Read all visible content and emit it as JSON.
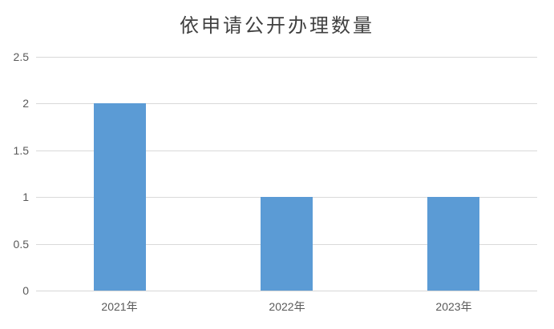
{
  "chart_data": {
    "type": "bar",
    "title": "依申请公开办理数量",
    "categories": [
      "2021年",
      "2022年",
      "2023年"
    ],
    "values": [
      2,
      1,
      1
    ],
    "xlabel": "",
    "ylabel": "",
    "ylim": [
      0,
      2.5
    ],
    "yticks": [
      0,
      0.5,
      1,
      1.5,
      2,
      2.5
    ],
    "ytick_labels": [
      "0",
      "0.5",
      "1",
      "1.5",
      "2",
      "2.5"
    ],
    "grid": true,
    "legend": false,
    "colors": {
      "bar": "#5b9bd5",
      "gridline": "#d9d9d9",
      "axis_labels": "#595959",
      "title": "#404040",
      "background": "#ffffff"
    }
  }
}
